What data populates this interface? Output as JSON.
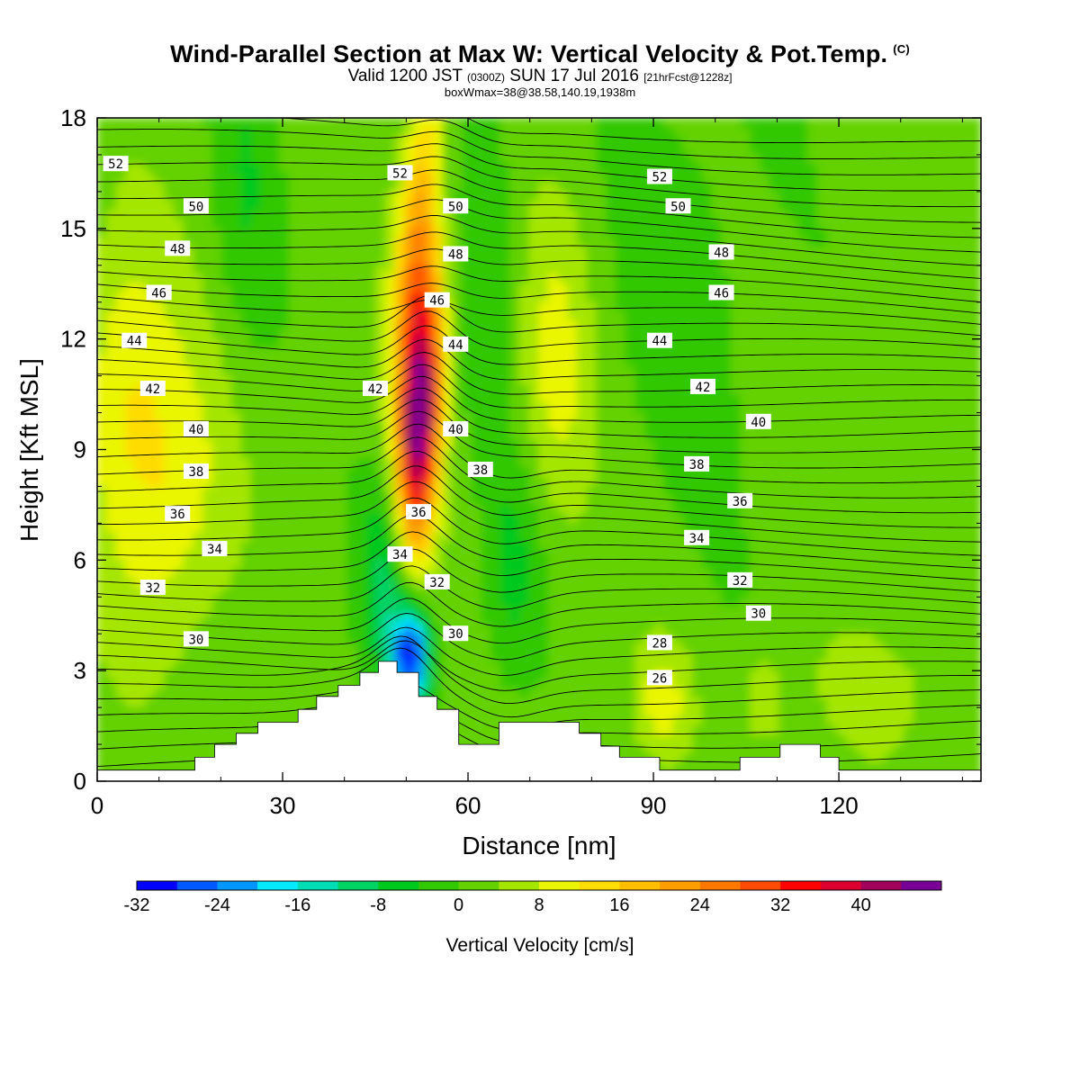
{
  "header": {
    "title": "Wind-Parallel Section at Max W: Vertical Velocity & Pot.Temp.",
    "copyright": "(C)",
    "subtitle_a": "Valid 1200 JST",
    "subtitle_b": "(0300Z)",
    "subtitle_c": "SUN 17 Jul 2016",
    "subtitle_d": "[21hrFcst@1228z]",
    "box_info": "boxWmax=38@38.58,140.19,1938m"
  },
  "colors": {
    "ramp": [
      "#0000ff",
      "#0058ff",
      "#0096ff",
      "#00ebff",
      "#00dcb4",
      "#00d264",
      "#00c81e",
      "#30c800",
      "#64d200",
      "#a5e600",
      "#eaf500",
      "#ffdc00",
      "#ffbe00",
      "#ffa000",
      "#ff7800",
      "#ff4b00",
      "#ff0000",
      "#dc0032",
      "#a0005a",
      "#780096"
    ],
    "terrain": "#ffffff",
    "isentrope": "#000000"
  },
  "chart_data": {
    "type": "heatmap",
    "xlabel": "Distance [nm]",
    "ylabel": "Height [Kft MSL]",
    "xlim": [
      0,
      143
    ],
    "ylim": [
      0,
      18
    ],
    "x_ticks": [
      "0",
      "30",
      "60",
      "90",
      "120"
    ],
    "y_ticks": [
      "0",
      "3",
      "6",
      "9",
      "12",
      "15",
      "18"
    ],
    "colorbar": {
      "title": "Vertical Velocity [cm/s]",
      "levels": [
        -32,
        -28,
        -24,
        -20,
        -16,
        -12,
        -8,
        -4,
        0,
        4,
        8,
        12,
        16,
        20,
        24,
        28,
        32,
        36,
        40,
        44
      ],
      "tick_labels": [
        "-32",
        "-24",
        "-16",
        "-8",
        "0",
        "8",
        "16",
        "24",
        "32",
        "40"
      ]
    },
    "updraft_max_cm_s": 40,
    "downdraft_min_cm_s": -30,
    "terrain_profile_kft": [
      [
        0,
        0.3
      ],
      [
        15.8,
        0.3
      ],
      [
        15.8,
        0.65
      ],
      [
        19,
        0.65
      ],
      [
        19,
        1.0
      ],
      [
        22.5,
        1.0
      ],
      [
        22.5,
        1.3
      ],
      [
        26,
        1.3
      ],
      [
        26,
        1.6
      ],
      [
        32.5,
        1.6
      ],
      [
        32.5,
        1.95
      ],
      [
        35.5,
        1.95
      ],
      [
        35.5,
        2.3
      ],
      [
        39,
        2.3
      ],
      [
        39,
        2.6
      ],
      [
        42.5,
        2.6
      ],
      [
        42.5,
        2.95
      ],
      [
        45.5,
        2.95
      ],
      [
        45.5,
        3.25
      ],
      [
        48.5,
        3.25
      ],
      [
        48.5,
        2.95
      ],
      [
        52,
        2.95
      ],
      [
        52,
        2.3
      ],
      [
        55,
        2.3
      ],
      [
        55,
        1.95
      ],
      [
        58.5,
        1.95
      ],
      [
        58.5,
        1.0
      ],
      [
        65,
        1.0
      ],
      [
        65,
        1.6
      ],
      [
        78,
        1.6
      ],
      [
        78,
        1.3
      ],
      [
        81.5,
        1.3
      ],
      [
        81.5,
        0.95
      ],
      [
        84.5,
        0.95
      ],
      [
        84.5,
        0.65
      ],
      [
        91,
        0.65
      ],
      [
        91,
        0.3
      ],
      [
        104,
        0.3
      ],
      [
        104,
        0.65
      ],
      [
        110.5,
        0.65
      ],
      [
        110.5,
        1.0
      ],
      [
        117,
        1.0
      ],
      [
        117,
        0.65
      ],
      [
        120,
        0.65
      ],
      [
        120,
        0.3
      ],
      [
        143,
        0.3
      ]
    ],
    "isentropes": [
      {
        "label": "52",
        "positions": [
          [
            3,
            16.75
          ],
          [
            49,
            16.5
          ],
          [
            91,
            16.4
          ]
        ]
      },
      {
        "label": "50",
        "positions": [
          [
            16,
            15.6
          ],
          [
            58,
            15.6
          ],
          [
            94,
            15.6
          ]
        ]
      },
      {
        "label": "48",
        "positions": [
          [
            13,
            14.45
          ],
          [
            58,
            14.3
          ],
          [
            101,
            14.35
          ]
        ]
      },
      {
        "label": "46",
        "positions": [
          [
            10,
            13.25
          ],
          [
            55,
            13.05
          ],
          [
            101,
            13.25
          ]
        ]
      },
      {
        "label": "44",
        "positions": [
          [
            6,
            11.95
          ],
          [
            58,
            11.85
          ],
          [
            91,
            11.95
          ]
        ]
      },
      {
        "label": "42",
        "positions": [
          [
            9,
            10.65
          ],
          [
            45,
            10.65
          ],
          [
            98,
            10.7
          ]
        ]
      },
      {
        "label": "40",
        "positions": [
          [
            16,
            9.55
          ],
          [
            58,
            9.55
          ],
          [
            107,
            9.75
          ]
        ]
      },
      {
        "label": "38",
        "positions": [
          [
            16,
            8.4
          ],
          [
            62,
            8.45
          ],
          [
            97,
            8.6
          ]
        ]
      },
      {
        "label": "36",
        "positions": [
          [
            13,
            7.25
          ],
          [
            52,
            7.3
          ],
          [
            104,
            7.6
          ]
        ]
      },
      {
        "label": "34",
        "positions": [
          [
            19,
            6.3
          ],
          [
            49,
            6.15
          ],
          [
            97,
            6.6
          ]
        ]
      },
      {
        "label": "32",
        "positions": [
          [
            9,
            5.25
          ],
          [
            55,
            5.4
          ],
          [
            104,
            5.45
          ]
        ]
      },
      {
        "label": "30",
        "positions": [
          [
            16,
            3.85
          ],
          [
            58,
            4.0
          ],
          [
            107,
            4.55
          ]
        ]
      },
      {
        "label": "28",
        "positions": [
          [
            91,
            3.75
          ]
        ]
      },
      {
        "label": "26",
        "positions": [
          [
            91,
            2.8
          ]
        ]
      }
    ]
  }
}
